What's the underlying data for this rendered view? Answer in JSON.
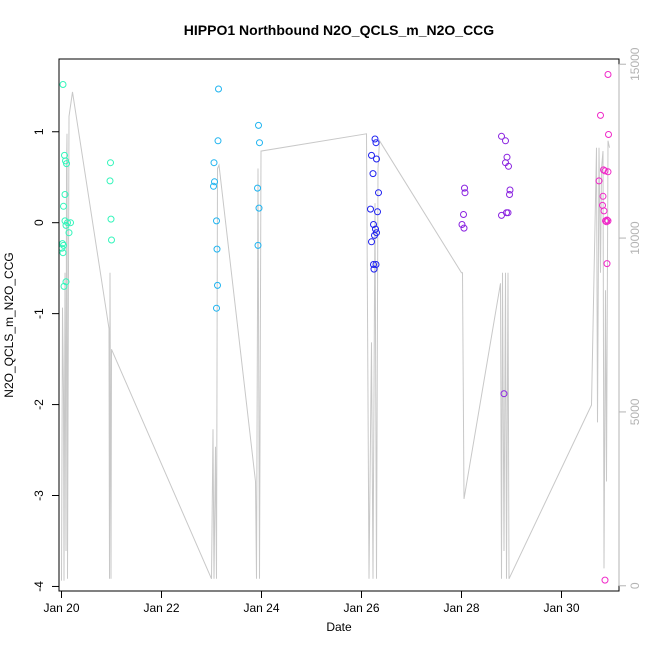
{
  "chart_data": {
    "type": "scatter",
    "title": "HIPPO1 Northbound N2O_QCLS_m_N2O_CCG",
    "xlabel": "Date",
    "ylabel": "N2O_QCLS_m_N2O_CCG",
    "x_ticks": [
      {
        "day": 20,
        "label": "Jan 20"
      },
      {
        "day": 22,
        "label": "Jan 22"
      },
      {
        "day": 24,
        "label": "Jan 24"
      },
      {
        "day": 26,
        "label": "Jan 26"
      },
      {
        "day": 28,
        "label": "Jan 28"
      },
      {
        "day": 30,
        "label": "Jan 30"
      }
    ],
    "xlim": [
      19.95,
      31.15
    ],
    "ylim": [
      -4.05,
      1.8
    ],
    "y_ticks": [
      -4,
      -3,
      -2,
      -1,
      0,
      1
    ],
    "y2lim": [
      -150,
      15150
    ],
    "y2_ticks": [
      0,
      5000,
      10000,
      15000
    ],
    "grid": false,
    "legend": "none",
    "series": [
      {
        "color": "#33f5bb",
        "points": [
          [
            20.03,
            1.52
          ],
          [
            20.06,
            0.74
          ],
          [
            20.08,
            0.68
          ],
          [
            20.1,
            0.65
          ],
          [
            20.07,
            0.31
          ],
          [
            20.04,
            0.18
          ],
          [
            20.07,
            0.02
          ],
          [
            20.09,
            -0.03
          ],
          [
            20.12,
            0.0
          ],
          [
            20.18,
            0.0
          ],
          [
            20.02,
            -0.23
          ],
          [
            20.04,
            -0.25
          ],
          [
            20.01,
            -0.28
          ],
          [
            20.03,
            -0.33
          ],
          [
            20.15,
            -0.11
          ],
          [
            20.09,
            -0.65
          ],
          [
            20.05,
            -0.7
          ],
          [
            20.98,
            0.66
          ],
          [
            20.97,
            0.46
          ],
          [
            20.99,
            0.04
          ],
          [
            21.0,
            -0.19
          ]
        ]
      },
      {
        "color": "#1fb4f0",
        "points": [
          [
            23.14,
            1.47
          ],
          [
            23.13,
            0.9
          ],
          [
            23.05,
            0.66
          ],
          [
            23.06,
            0.45
          ],
          [
            23.04,
            0.4
          ],
          [
            23.1,
            0.02
          ],
          [
            23.11,
            -0.29
          ],
          [
            23.12,
            -0.69
          ],
          [
            23.1,
            -0.94
          ],
          [
            23.94,
            1.07
          ],
          [
            23.96,
            0.88
          ],
          [
            23.92,
            0.38
          ],
          [
            23.95,
            0.16
          ],
          [
            23.93,
            -0.25
          ]
        ]
      },
      {
        "color": "#1f22f0",
        "points": [
          [
            26.2,
            0.74
          ],
          [
            26.27,
            0.92
          ],
          [
            26.29,
            0.88
          ],
          [
            26.3,
            0.7
          ],
          [
            26.23,
            0.54
          ],
          [
            26.34,
            0.33
          ],
          [
            26.18,
            0.15
          ],
          [
            26.32,
            0.12
          ],
          [
            26.24,
            -0.02
          ],
          [
            26.28,
            -0.07
          ],
          [
            26.3,
            -0.11
          ],
          [
            26.26,
            -0.14
          ],
          [
            26.2,
            -0.21
          ],
          [
            26.29,
            -0.46
          ],
          [
            26.24,
            -0.46
          ],
          [
            26.25,
            -0.51
          ]
        ]
      },
      {
        "color": "#8a22e0",
        "points": [
          [
            28.06,
            0.38
          ],
          [
            28.07,
            0.33
          ],
          [
            28.04,
            0.09
          ],
          [
            28.01,
            -0.02
          ],
          [
            28.05,
            -0.06
          ],
          [
            28.8,
            0.95
          ],
          [
            28.88,
            0.9
          ],
          [
            28.91,
            0.72
          ],
          [
            28.88,
            0.66
          ],
          [
            28.94,
            0.62
          ],
          [
            28.97,
            0.36
          ],
          [
            28.96,
            0.31
          ],
          [
            28.9,
            0.11
          ],
          [
            28.93,
            0.11
          ],
          [
            28.8,
            0.08
          ],
          [
            28.85,
            -1.88
          ]
        ]
      },
      {
        "color": "#f028c8",
        "points": [
          [
            30.93,
            1.63
          ],
          [
            30.78,
            1.18
          ],
          [
            30.94,
            0.97
          ],
          [
            30.84,
            0.58
          ],
          [
            30.87,
            0.57
          ],
          [
            30.93,
            0.56
          ],
          [
            30.75,
            0.46
          ],
          [
            30.83,
            0.29
          ],
          [
            30.82,
            0.19
          ],
          [
            30.85,
            0.13
          ],
          [
            30.91,
            0.03
          ],
          [
            30.88,
            0.02
          ],
          [
            30.93,
            0.02
          ],
          [
            30.9,
            0.01
          ],
          [
            30.91,
            -0.45
          ],
          [
            30.87,
            -3.93
          ]
        ]
      }
    ],
    "altitude_line": {
      "color": "#c8c8c8",
      "points": [
        [
          20.0,
          150
        ],
        [
          20.02,
          8000
        ],
        [
          20.04,
          5500
        ],
        [
          20.05,
          150
        ],
        [
          20.07,
          9000
        ],
        [
          20.09,
          1000
        ],
        [
          20.1,
          12000
        ],
        [
          20.11,
          13000
        ],
        [
          20.12,
          200
        ],
        [
          20.15,
          13500
        ],
        [
          20.22,
          14200
        ],
        [
          20.95,
          7400
        ],
        [
          20.96,
          200
        ],
        [
          20.97,
          9000
        ],
        [
          20.99,
          200
        ],
        [
          21.0,
          6800
        ],
        [
          23.0,
          200
        ],
        [
          23.03,
          4500
        ],
        [
          23.05,
          200
        ],
        [
          23.08,
          4000
        ],
        [
          23.1,
          200
        ],
        [
          23.12,
          12000
        ],
        [
          23.15,
          12100
        ],
        [
          23.88,
          3000
        ],
        [
          23.9,
          200
        ],
        [
          23.93,
          12000
        ],
        [
          23.96,
          200
        ],
        [
          23.99,
          12500
        ],
        [
          26.1,
          13000
        ],
        [
          26.15,
          200
        ],
        [
          26.2,
          7000
        ],
        [
          26.23,
          200
        ],
        [
          26.27,
          11000
        ],
        [
          26.3,
          200
        ],
        [
          26.33,
          12000
        ],
        [
          26.36,
          12800
        ],
        [
          28.0,
          9000
        ],
        [
          28.02,
          9000
        ],
        [
          28.05,
          2500
        ],
        [
          28.78,
          8700
        ],
        [
          28.8,
          200
        ],
        [
          28.82,
          9000
        ],
        [
          28.85,
          1000
        ],
        [
          28.88,
          9000
        ],
        [
          28.9,
          200
        ],
        [
          28.93,
          9000
        ],
        [
          28.95,
          200
        ],
        [
          30.6,
          5200
        ],
        [
          30.7,
          12600
        ],
        [
          30.72,
          4700
        ],
        [
          30.75,
          12600
        ],
        [
          30.78,
          9000
        ],
        [
          30.8,
          12000
        ],
        [
          30.83,
          12500
        ],
        [
          30.85,
          500
        ],
        [
          30.88,
          8500
        ],
        [
          30.9,
          3000
        ],
        [
          30.93,
          12800
        ],
        [
          30.96,
          12600
        ]
      ]
    }
  }
}
